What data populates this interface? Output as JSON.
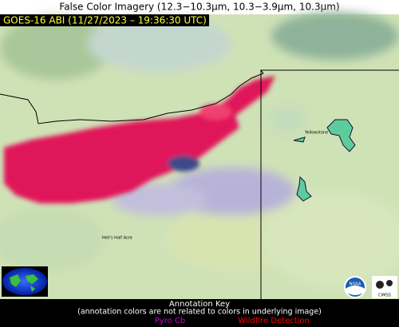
{
  "title": "False Color Imagery (12.3−10.3µm, 10.3−3.9µm, 10.3µm)",
  "image_label": "GOES-16 ABI (11/27/2023 – 19:36:30 UTC)",
  "place_labels": [
    "Hell's Half Acre",
    "Yellowstone"
  ],
  "logos": [
    "NOAA",
    "CIMSS"
  ],
  "annotation_key": {
    "title": "Annotation Key",
    "note": "(annotation colors are not related to colors in underlying image)",
    "items": [
      {
        "label": "Pyro Cb",
        "color": "#d000d0"
      },
      {
        "label": "Wildfire Detection",
        "color": "#ff0000"
      }
    ]
  }
}
